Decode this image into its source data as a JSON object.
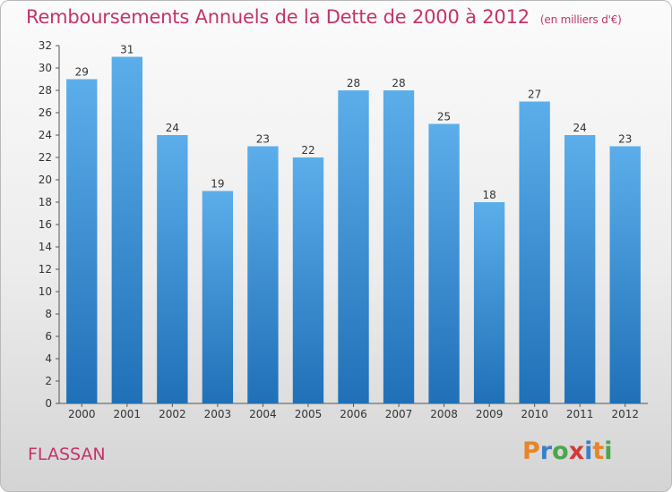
{
  "title": "Remboursements Annuels de la Dette de 2000 à 2012",
  "unit": "(en milliers d'€)",
  "commune": "FLASSAN",
  "logo": {
    "letters": [
      "P",
      "r",
      "o",
      "x",
      "i",
      "t",
      "i"
    ],
    "colors": [
      "#e8842a",
      "#3b7fc8",
      "#4aa64a",
      "#d23a3a",
      "#3b7fc8",
      "#e8842a",
      "#4aa64a"
    ]
  },
  "chart_data": {
    "type": "bar",
    "categories": [
      "2000",
      "2001",
      "2002",
      "2003",
      "2004",
      "2005",
      "2006",
      "2007",
      "2008",
      "2009",
      "2010",
      "2011",
      "2012"
    ],
    "values": [
      29,
      31,
      24,
      19,
      23,
      22,
      28,
      28,
      25,
      18,
      27,
      24,
      23
    ],
    "ylim": [
      0,
      32
    ],
    "ytick_step": 2,
    "grid": false,
    "bar_color": "#3a8fd6",
    "title": "Remboursements Annuels de la Dette de 2000 à 2012"
  }
}
